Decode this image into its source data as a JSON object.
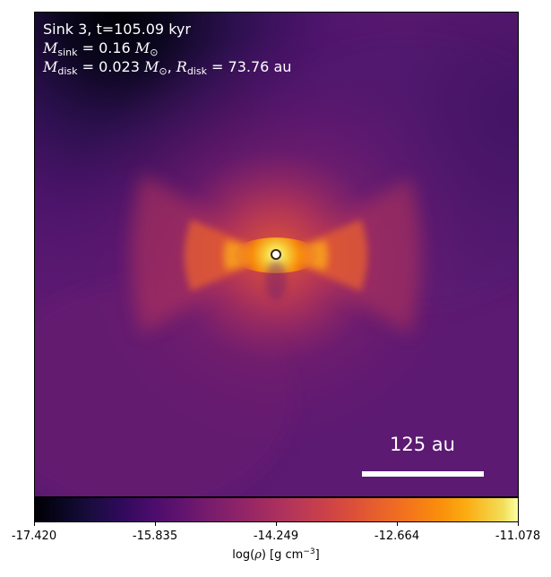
{
  "panel": {
    "title_line": "Sink 3, t=105.09 kyr",
    "mass_sink": {
      "symbol": "M",
      "subscript": "sink",
      "expression": " = 0.16 ",
      "unit_symbol": "M",
      "unit_subscript": "⊙"
    },
    "mass_disk": {
      "symbol": "M",
      "subscript": "disk",
      "expression": " = 0.023 ",
      "unit_symbol": "M",
      "unit_subscript": "⊙",
      "separator": ", "
    },
    "radius_disk": {
      "symbol": "R",
      "subscript": "disk",
      "expression": " = 73.76 au"
    },
    "scale_bar_label": "125 au"
  },
  "colorbar": {
    "colormap": "inferno",
    "min": -17.42,
    "max": -11.078,
    "ticks": [
      {
        "value": -17.42,
        "label": "-17.420"
      },
      {
        "value": -15.835,
        "label": "-15.835"
      },
      {
        "value": -14.249,
        "label": "-14.249"
      },
      {
        "value": -12.664,
        "label": "-12.664"
      },
      {
        "value": -11.078,
        "label": "-11.078"
      }
    ],
    "label_prefix": "log(",
    "label_symbol": "ρ",
    "label_suffix": ") [g cm",
    "label_exponent": "−3",
    "label_close": "]"
  }
}
